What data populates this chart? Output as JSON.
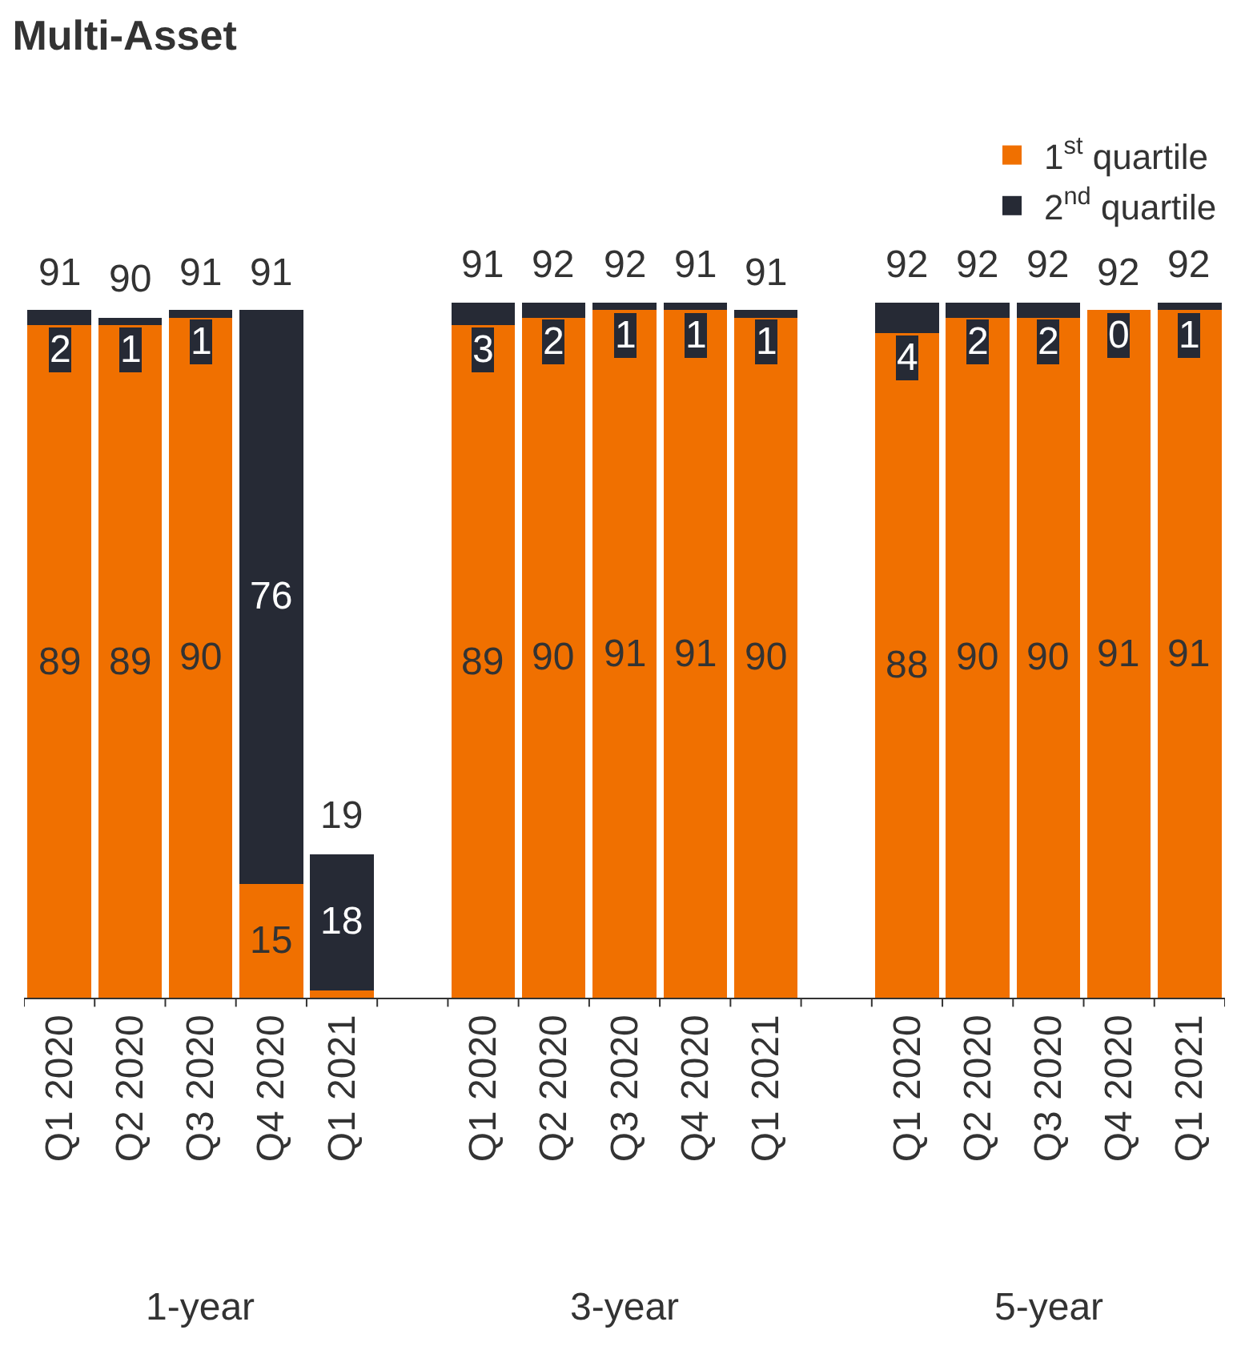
{
  "chart_data": {
    "type": "bar",
    "title": "Multi-Asset",
    "stacked": true,
    "legend": "top right",
    "categories": [
      "Q1 2020",
      "Q2 2020",
      "Q3 2020",
      "Q4 2020",
      "Q1 2021",
      null,
      "Q1 2020",
      "Q2 2020",
      "Q3 2020",
      "Q4 2020",
      "Q1 2021",
      null,
      "Q1 2020",
      "Q2 2020",
      "Q3 2020",
      "Q4 2020",
      "Q1 2021"
    ],
    "series": [
      {
        "name": "1$^{st}$ quartile",
        "color": "#f07000",
        "values": [
          89,
          89,
          90,
          15,
          1,
          null,
          89,
          90,
          91,
          91,
          90,
          null,
          88,
          90,
          90,
          91,
          91
        ],
        "value_labels": [
          "89",
          "89",
          "90",
          "15",
          null,
          null,
          "89",
          "90",
          "91",
          "91",
          "90",
          null,
          "88",
          "90",
          "90",
          "91",
          "91"
        ]
      },
      {
        "name": "2$^{nd}$ quartile",
        "color": "#262a35",
        "values": [
          2,
          1,
          1,
          76,
          18,
          null,
          3,
          2,
          1,
          1,
          1,
          null,
          4,
          2,
          2,
          0,
          1
        ],
        "value_labels": [
          "2",
          "1",
          "1",
          "76",
          "18",
          null,
          "3",
          "2",
          "1",
          "1",
          "1",
          null,
          "4",
          "2",
          "2",
          "0",
          "1"
        ]
      }
    ],
    "totals": [
      "91",
      "90",
      "91",
      "91",
      "19",
      null,
      "91",
      "92",
      "92",
      "91",
      "91",
      null,
      "92",
      "92",
      "92",
      "92",
      "92"
    ],
    "annotations": [
      "1-year",
      "3-year",
      "5-year"
    ]
  }
}
